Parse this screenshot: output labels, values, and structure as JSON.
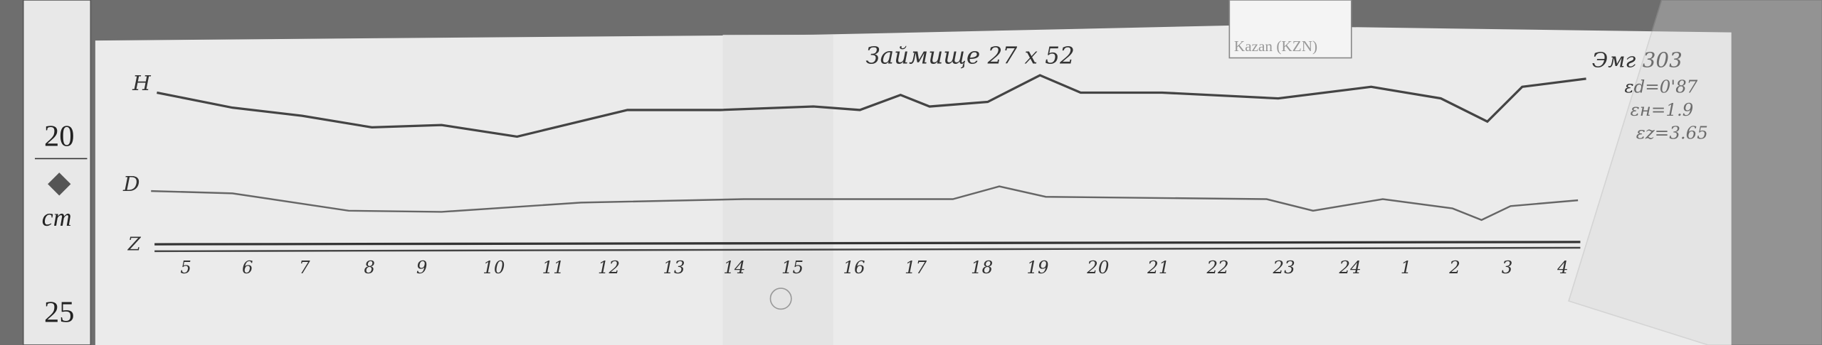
{
  "ruler": {
    "marks": [
      "20",
      "25"
    ],
    "unit": "cm"
  },
  "station_label": "Kazan (KZN)",
  "title_handwritten": "Займище 27 x 52",
  "notes": {
    "top_right": "Эмг 303",
    "eps_d": "εd=0'87",
    "eps_h": "εн=1.9",
    "eps_z": "εz=3.65"
  },
  "trace_labels": {
    "h": "H",
    "d": "D",
    "z": "Z"
  },
  "hour_labels": [
    "5",
    "6",
    "7",
    "8",
    "9",
    "10",
    "11",
    "12",
    "13",
    "14",
    "15",
    "16",
    "17",
    "18",
    "19",
    "20",
    "21",
    "22",
    "23",
    "24",
    "1",
    "2",
    "3",
    "4"
  ],
  "colors": {
    "background": "#6e6e6e",
    "paper": "#ebebeb",
    "trace": "#444444"
  }
}
